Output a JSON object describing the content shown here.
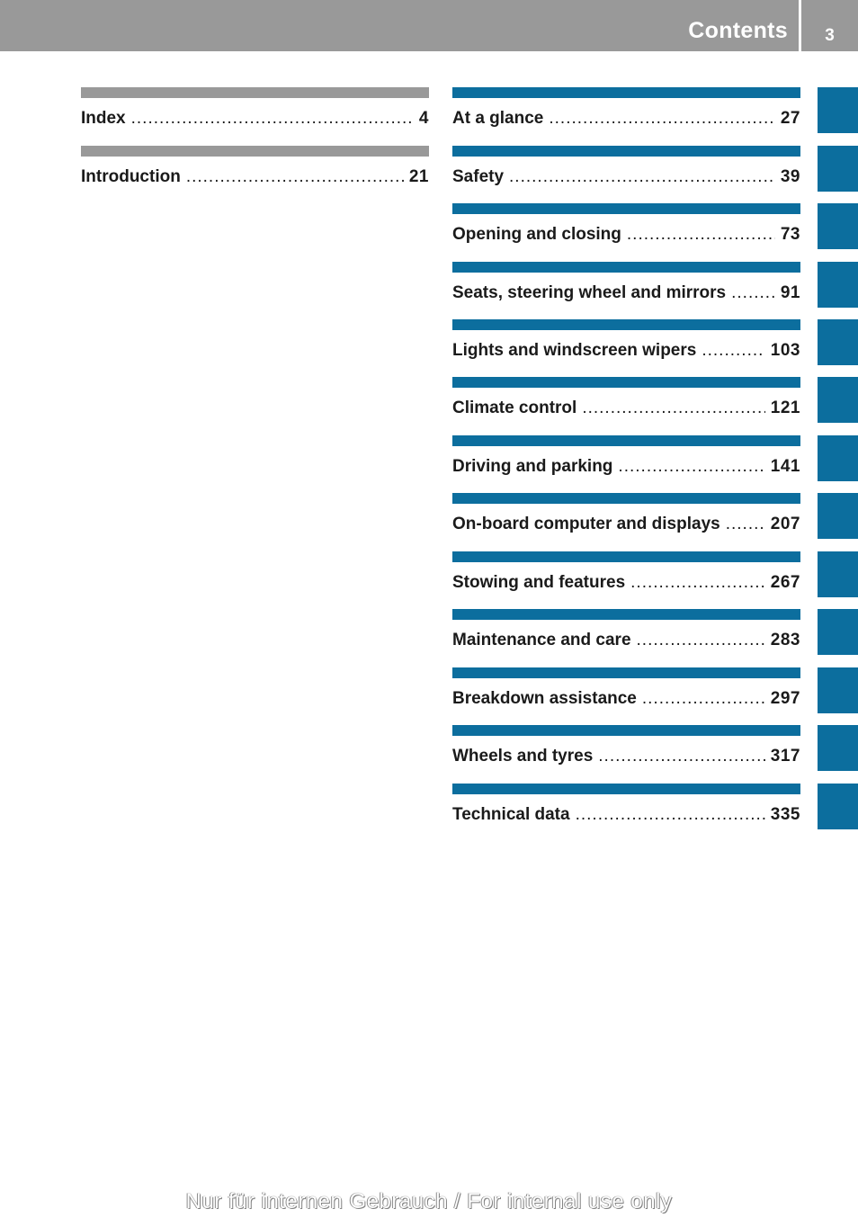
{
  "header": {
    "title": "Contents",
    "page_number": "3"
  },
  "left_entries": [
    {
      "label": "Index",
      "page": "4"
    },
    {
      "label": "Introduction",
      "page": "21"
    }
  ],
  "right_entries": [
    {
      "label": "At a glance",
      "page": "27"
    },
    {
      "label": "Safety",
      "page": "39"
    },
    {
      "label": "Opening and closing",
      "page": "73"
    },
    {
      "label": "Seats, steering wheel and mirrors",
      "page": "91"
    },
    {
      "label": "Lights and windscreen wipers",
      "page": "103"
    },
    {
      "label": "Climate control",
      "page": "121"
    },
    {
      "label": "Driving and parking",
      "page": "141"
    },
    {
      "label": "On-board computer and displays",
      "page": "207"
    },
    {
      "label": "Stowing and features",
      "page": "267"
    },
    {
      "label": "Maintenance and care",
      "page": "283"
    },
    {
      "label": "Breakdown assistance",
      "page": "297"
    },
    {
      "label": "Wheels and tyres",
      "page": "317"
    },
    {
      "label": "Technical data",
      "page": "335"
    }
  ],
  "watermark": "Nur für internen Gebrauch / For internal use only",
  "colors": {
    "accent": "#0c6e9e",
    "gray": "#999999"
  }
}
